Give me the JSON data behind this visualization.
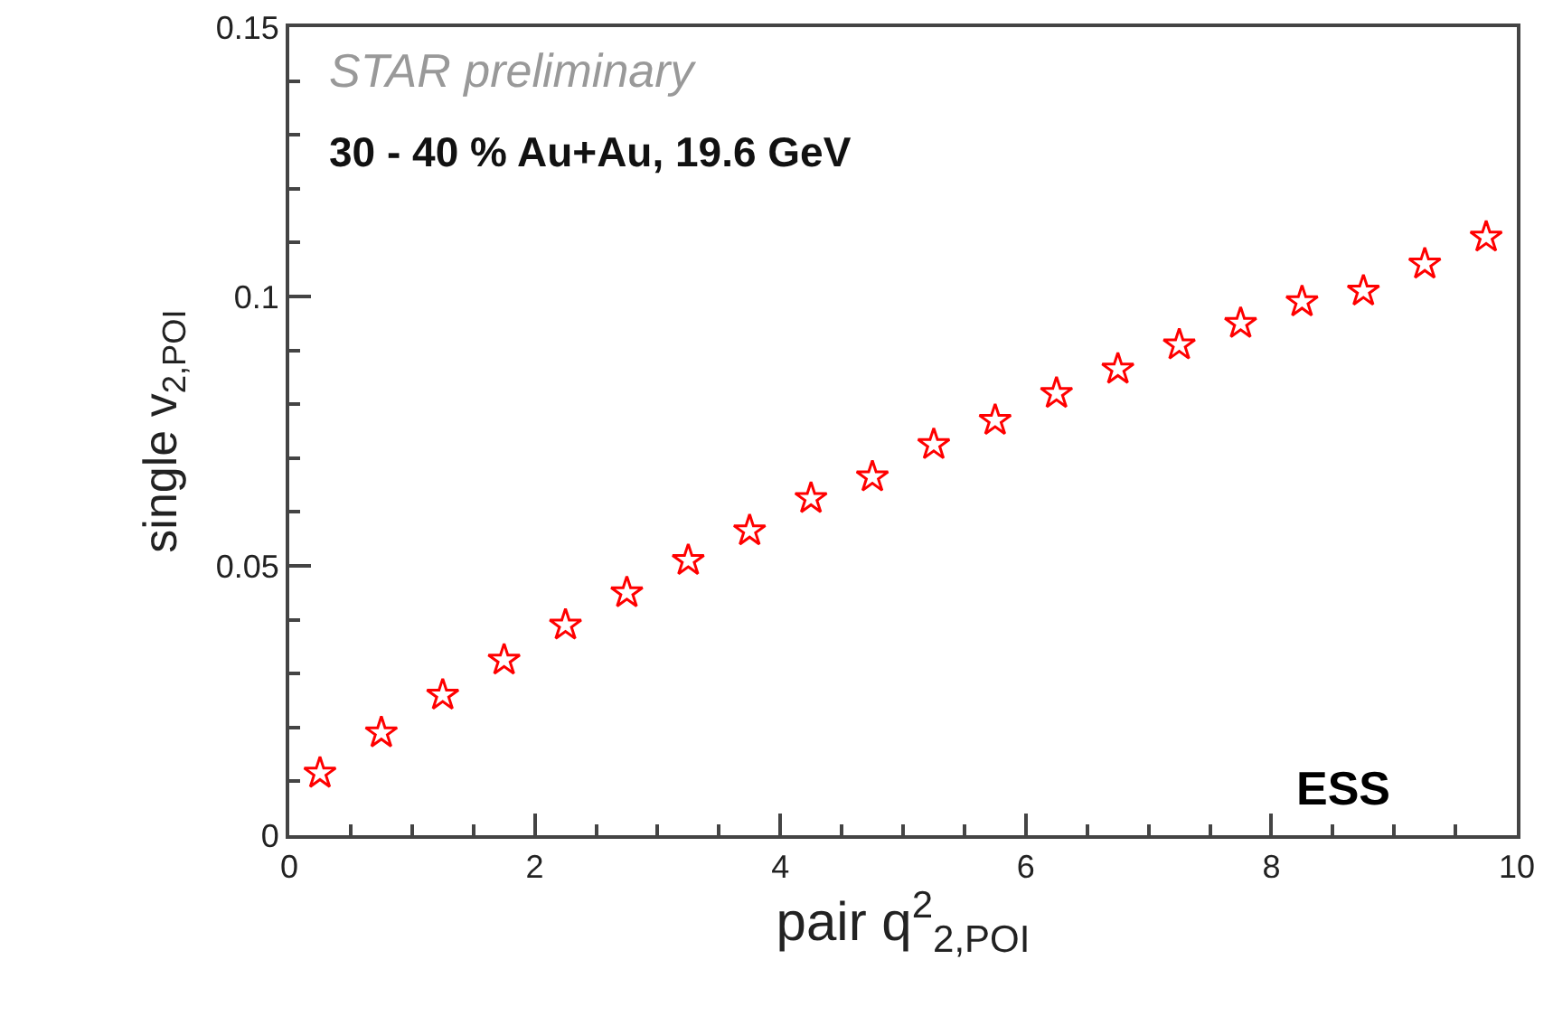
{
  "chart_data": {
    "type": "scatter",
    "xlabel": "pair q$^{2}$$_{2,POI}$",
    "ylabel": "single v$_{2,POI}$",
    "annotations": [
      "STAR preliminary",
      "30 - 40 % Au+Au, 19.6 GeV",
      "ESS"
    ],
    "x": [
      0.25,
      0.75,
      1.25,
      1.75,
      2.25,
      2.75,
      3.25,
      3.75,
      4.25,
      4.75,
      5.25,
      5.75,
      6.25,
      6.75,
      7.25,
      7.75,
      8.25,
      8.75,
      9.25,
      9.75
    ],
    "series": [
      {
        "color": "#ff0000",
        "values": [
          0.0115,
          0.019,
          0.026,
          0.0325,
          0.039,
          0.045,
          0.051,
          0.0565,
          0.0625,
          0.0665,
          0.0725,
          0.077,
          0.082,
          0.0865,
          0.091,
          0.095,
          0.099,
          0.101,
          0.106,
          0.111
        ]
      }
    ],
    "marker": "star",
    "xlim": [
      0,
      10
    ],
    "ylim": [
      0,
      0.15
    ],
    "xticks": [
      0,
      2,
      4,
      6,
      8,
      10
    ],
    "yticks": [
      0,
      0.05,
      0.1,
      0.15
    ]
  }
}
